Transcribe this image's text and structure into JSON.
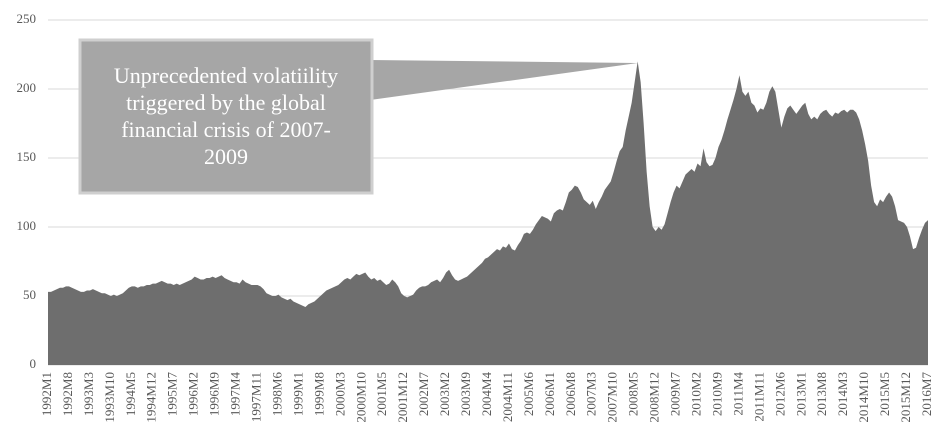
{
  "chart_data": {
    "type": "area",
    "color": "#6e6e6e",
    "grid": true,
    "ylim": [
      0,
      250
    ],
    "yticks": [
      0,
      50,
      100,
      150,
      200,
      250
    ],
    "annotation": {
      "lines": [
        "Unprecedented volatiility",
        "triggered by the global",
        "financial crisis of 2007-",
        "2009"
      ]
    },
    "categories": [
      "1992M1",
      null,
      null,
      null,
      null,
      null,
      null,
      "1992M8",
      null,
      null,
      null,
      null,
      null,
      null,
      "1993M3",
      null,
      null,
      null,
      null,
      null,
      null,
      "1993M10",
      null,
      null,
      null,
      null,
      null,
      null,
      "1994M5",
      null,
      null,
      null,
      null,
      null,
      null,
      "1994M12",
      null,
      null,
      null,
      null,
      null,
      null,
      "1995M7",
      null,
      null,
      null,
      null,
      null,
      null,
      "1996M2",
      null,
      null,
      null,
      null,
      null,
      null,
      "1996M9",
      null,
      null,
      null,
      null,
      null,
      null,
      "1997M4",
      null,
      null,
      null,
      null,
      null,
      null,
      "1997M11",
      null,
      null,
      null,
      null,
      null,
      null,
      "1998M6",
      null,
      null,
      null,
      null,
      null,
      null,
      "1999M1",
      null,
      null,
      null,
      null,
      null,
      null,
      "1999M8",
      null,
      null,
      null,
      null,
      null,
      null,
      "2000M3",
      null,
      null,
      null,
      null,
      null,
      null,
      "2000M10",
      null,
      null,
      null,
      null,
      null,
      null,
      "2001M5",
      null,
      null,
      null,
      null,
      null,
      null,
      "2001M12",
      null,
      null,
      null,
      null,
      null,
      null,
      "2002M7",
      null,
      null,
      null,
      null,
      null,
      null,
      "2003M2",
      null,
      null,
      null,
      null,
      null,
      null,
      "2003M9",
      null,
      null,
      null,
      null,
      null,
      null,
      "2004M4",
      null,
      null,
      null,
      null,
      null,
      null,
      "2004M11",
      null,
      null,
      null,
      null,
      null,
      null,
      "2005M6",
      null,
      null,
      null,
      null,
      null,
      null,
      "2006M1",
      null,
      null,
      null,
      null,
      null,
      null,
      "2006M8",
      null,
      null,
      null,
      null,
      null,
      null,
      "2007M3",
      null,
      null,
      null,
      null,
      null,
      null,
      "2007M10",
      null,
      null,
      null,
      null,
      null,
      null,
      "2008M5",
      null,
      null,
      null,
      null,
      null,
      null,
      "2008M12",
      null,
      null,
      null,
      null,
      null,
      null,
      "2009M7",
      null,
      null,
      null,
      null,
      null,
      null,
      "2010M2",
      null,
      null,
      null,
      null,
      null,
      null,
      "2010M9",
      null,
      null,
      null,
      null,
      null,
      null,
      "2011M4",
      null,
      null,
      null,
      null,
      null,
      null,
      "2011M11",
      null,
      null,
      null,
      null,
      null,
      null,
      "2012M6",
      null,
      null,
      null,
      null,
      null,
      null,
      "2013M1",
      null,
      null,
      null,
      null,
      null,
      null,
      "2013M8",
      null,
      null,
      null,
      null,
      null,
      null,
      "2014M3",
      null,
      null,
      null,
      null,
      null,
      null,
      "2014M10",
      null,
      null,
      null,
      null,
      null,
      null,
      "2015M5",
      null,
      null,
      null,
      null,
      null,
      null,
      "2015M12",
      null,
      null,
      null,
      null,
      null,
      null,
      "2016M7"
    ],
    "values": [
      53,
      53,
      54,
      55,
      56,
      56,
      57,
      57,
      56,
      55,
      54,
      53,
      53,
      54,
      54,
      55,
      54,
      53,
      52,
      52,
      51,
      50,
      51,
      50,
      51,
      52,
      54,
      56,
      57,
      57,
      56,
      57,
      57,
      58,
      58,
      59,
      59,
      60,
      61,
      60,
      59,
      59,
      58,
      59,
      58,
      59,
      60,
      61,
      62,
      64,
      63,
      62,
      62,
      63,
      63,
      64,
      63,
      64,
      65,
      63,
      62,
      61,
      60,
      60,
      59,
      62,
      60,
      59,
      58,
      58,
      58,
      57,
      55,
      52,
      51,
      50,
      50,
      51,
      49,
      48,
      47,
      48,
      46,
      45,
      44,
      43,
      42,
      44,
      45,
      46,
      48,
      50,
      52,
      54,
      55,
      56,
      57,
      58,
      60,
      62,
      63,
      62,
      64,
      66,
      65,
      66,
      67,
      64,
      62,
      63,
      61,
      62,
      60,
      58,
      59,
      62,
      60,
      57,
      52,
      50,
      49,
      50,
      51,
      54,
      56,
      57,
      57,
      58,
      60,
      61,
      62,
      60,
      63,
      67,
      69,
      65,
      62,
      61,
      62,
      63,
      64,
      66,
      68,
      70,
      72,
      74,
      77,
      78,
      80,
      82,
      84,
      83,
      86,
      85,
      88,
      84,
      83,
      87,
      90,
      95,
      96,
      95,
      98,
      102,
      105,
      108,
      107,
      106,
      104,
      110,
      112,
      113,
      112,
      118,
      125,
      127,
      130,
      129,
      125,
      120,
      118,
      116,
      119,
      113,
      118,
      122,
      127,
      130,
      133,
      140,
      148,
      155,
      158,
      170,
      180,
      190,
      205,
      220,
      205,
      175,
      140,
      115,
      100,
      97,
      100,
      98,
      102,
      110,
      118,
      125,
      130,
      128,
      133,
      138,
      140,
      142,
      140,
      146,
      144,
      157,
      147,
      144,
      145,
      150,
      158,
      163,
      170,
      178,
      185,
      192,
      200,
      210,
      198,
      195,
      198,
      190,
      188,
      183,
      186,
      185,
      190,
      198,
      202,
      198,
      185,
      172,
      180,
      186,
      188,
      185,
      182,
      185,
      188,
      190,
      182,
      178,
      180,
      178,
      182,
      184,
      185,
      182,
      180,
      183,
      182,
      184,
      185,
      183,
      185,
      185,
      183,
      178,
      170,
      160,
      148,
      130,
      118,
      115,
      120,
      118,
      122,
      125,
      122,
      115,
      105,
      104,
      103,
      100,
      93,
      84,
      85,
      92,
      98,
      103,
      105
    ]
  }
}
